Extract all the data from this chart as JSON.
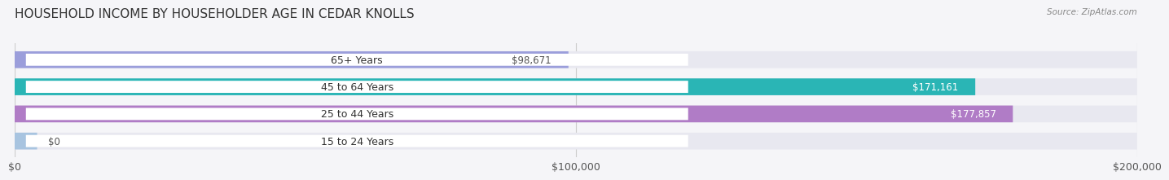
{
  "title": "HOUSEHOLD INCOME BY HOUSEHOLDER AGE IN CEDAR KNOLLS",
  "source": "Source: ZipAtlas.com",
  "categories": [
    "15 to 24 Years",
    "25 to 44 Years",
    "45 to 64 Years",
    "65+ Years"
  ],
  "values": [
    0,
    177857,
    171161,
    98671
  ],
  "labels": [
    "$0",
    "$177,857",
    "$171,161",
    "$98,671"
  ],
  "bar_colors": [
    "#a8c4e0",
    "#b07cc6",
    "#2ab5b5",
    "#9b9edb"
  ],
  "bar_bg_color": "#e8e8f0",
  "label_colors": [
    "#555555",
    "#ffffff",
    "#ffffff",
    "#555555"
  ],
  "xmax": 200000,
  "xticks": [
    0,
    100000,
    200000
  ],
  "xticklabels": [
    "$0",
    "$100,000",
    "$200,000"
  ],
  "background_color": "#f5f5f8",
  "title_fontsize": 11,
  "tick_fontsize": 9,
  "bar_label_fontsize": 8.5,
  "category_fontsize": 9
}
